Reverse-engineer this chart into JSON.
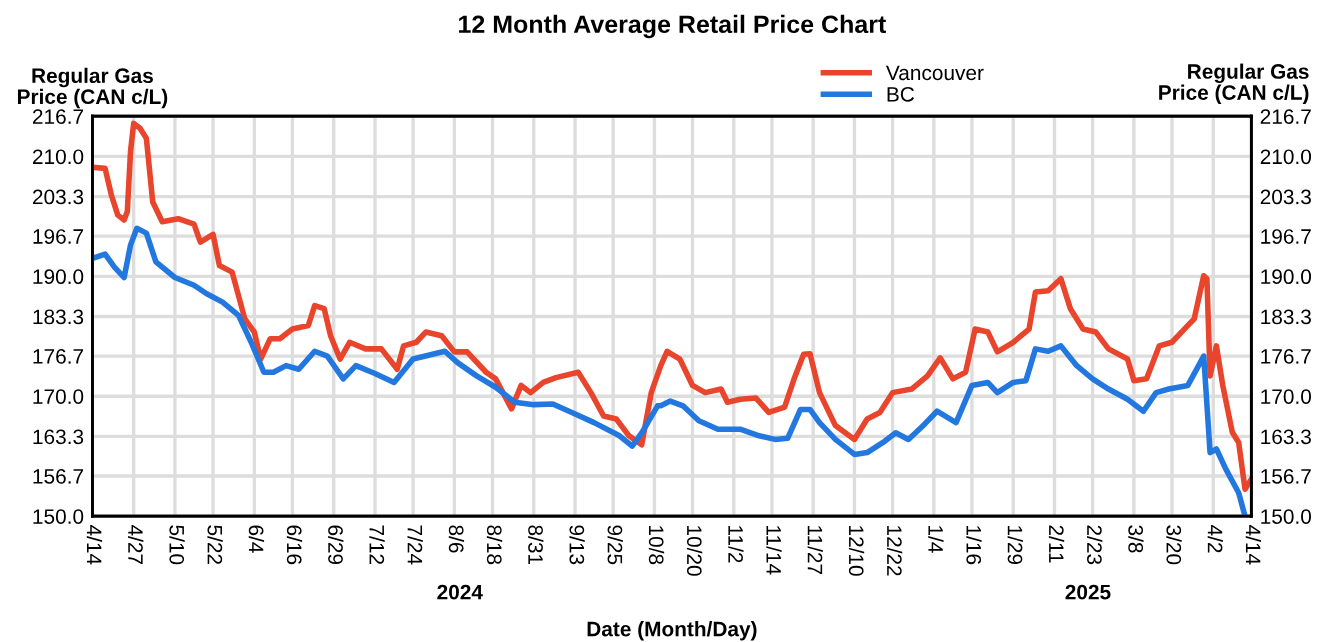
{
  "chart_data": {
    "type": "line",
    "title": "12 Month Average Retail Price Chart",
    "xlabel": "Date (Month/Day)",
    "ylabel": "Regular Gas\nPrice (CAN c/L)",
    "y2label": "Regular Gas\nPrice (CAN c/L)",
    "annotations": [
      "2024",
      "2025"
    ],
    "series": [
      {
        "name": "Vancouver",
        "color": "#e8452c",
        "x": [
          "2024-04-14",
          "2024-04-18",
          "2024-04-20",
          "2024-04-22",
          "2024-04-24",
          "2024-04-25",
          "2024-04-26",
          "2024-04-27",
          "2024-04-29",
          "2024-05-01",
          "2024-05-03",
          "2024-05-06",
          "2024-05-11",
          "2024-05-16",
          "2024-05-18",
          "2024-05-22",
          "2024-05-24",
          "2024-05-28",
          "2024-06-01",
          "2024-06-04",
          "2024-06-06",
          "2024-06-09",
          "2024-06-12",
          "2024-06-16",
          "2024-06-21",
          "2024-06-23",
          "2024-06-26",
          "2024-06-28",
          "2024-07-01",
          "2024-07-04",
          "2024-07-09",
          "2024-07-14",
          "2024-07-19",
          "2024-07-21",
          "2024-07-25",
          "2024-07-28",
          "2024-08-02",
          "2024-08-06",
          "2024-08-10",
          "2024-08-16",
          "2024-08-19",
          "2024-08-24",
          "2024-08-27",
          "2024-08-30",
          "2024-09-03",
          "2024-09-07",
          "2024-09-14",
          "2024-09-18",
          "2024-09-22",
          "2024-09-26",
          "2024-09-30",
          "2024-10-04",
          "2024-10-07",
          "2024-10-10",
          "2024-10-12",
          "2024-10-16",
          "2024-10-20",
          "2024-10-24",
          "2024-10-29",
          "2024-10-31",
          "2024-11-04",
          "2024-11-09",
          "2024-11-13",
          "2024-11-18",
          "2024-11-21",
          "2024-11-24",
          "2024-11-26",
          "2024-11-29",
          "2024-12-04",
          "2024-12-10",
          "2024-12-14",
          "2024-12-18",
          "2024-12-22",
          "2024-12-28",
          "2025-01-02",
          "2025-01-06",
          "2025-01-10",
          "2025-01-14",
          "2025-01-17",
          "2025-01-21",
          "2025-01-24",
          "2025-01-29",
          "2025-02-03",
          "2025-02-05",
          "2025-02-09",
          "2025-02-13",
          "2025-02-16",
          "2025-02-20",
          "2025-02-24",
          "2025-02-28",
          "2025-03-06",
          "2025-03-08",
          "2025-03-12",
          "2025-03-16",
          "2025-03-20",
          "2025-03-23",
          "2025-03-27",
          "2025-03-30",
          "2025-03-31",
          "2025-04-01",
          "2025-04-03",
          "2025-04-05",
          "2025-04-08",
          "2025-04-10",
          "2025-04-12",
          "2025-04-14"
        ],
        "values": [
          208.2,
          208.0,
          203.5,
          200.2,
          199.4,
          200.8,
          210.8,
          215.5,
          214.7,
          213.0,
          202.4,
          199.1,
          199.6,
          198.7,
          195.7,
          197.0,
          191.8,
          190.7,
          182.9,
          180.7,
          176.2,
          179.6,
          179.6,
          181.2,
          181.8,
          185.1,
          184.6,
          180.1,
          176.2,
          179.0,
          177.9,
          177.9,
          174.5,
          178.4,
          179.0,
          180.7,
          180.1,
          177.4,
          177.4,
          174.0,
          172.9,
          167.9,
          171.8,
          170.6,
          172.3,
          173.1,
          174.0,
          170.6,
          166.7,
          166.2,
          163.4,
          161.9,
          170.6,
          175.1,
          177.5,
          176.2,
          171.8,
          170.6,
          171.2,
          169.0,
          169.5,
          169.7,
          167.3,
          168.2,
          172.9,
          177.0,
          177.1,
          170.6,
          165.1,
          162.8,
          166.2,
          167.3,
          170.6,
          171.2,
          173.4,
          176.4,
          172.9,
          174.0,
          181.2,
          180.7,
          177.4,
          179.0,
          181.2,
          187.4,
          187.6,
          189.6,
          184.6,
          181.2,
          180.7,
          177.9,
          176.2,
          172.6,
          172.9,
          178.4,
          179.0,
          180.7,
          182.9,
          190.1,
          189.6,
          173.4,
          178.4,
          171.8,
          164.0,
          162.3,
          154.5,
          156.2
        ]
      },
      {
        "name": "BC",
        "color": "#2378e0",
        "x": [
          "2024-04-14",
          "2024-04-18",
          "2024-04-21",
          "2024-04-24",
          "2024-04-26",
          "2024-04-28",
          "2024-05-01",
          "2024-05-04",
          "2024-05-10",
          "2024-05-16",
          "2024-05-20",
          "2024-05-25",
          "2024-05-30",
          "2024-06-03",
          "2024-06-07",
          "2024-06-10",
          "2024-06-14",
          "2024-06-18",
          "2024-06-23",
          "2024-06-27",
          "2024-07-02",
          "2024-07-06",
          "2024-07-12",
          "2024-07-18",
          "2024-07-24",
          "2024-08-03",
          "2024-08-07",
          "2024-08-13",
          "2024-08-19",
          "2024-08-25",
          "2024-08-31",
          "2024-09-06",
          "2024-09-12",
          "2024-09-19",
          "2024-09-27",
          "2024-10-01",
          "2024-10-04",
          "2024-10-09",
          "2024-10-10",
          "2024-10-13",
          "2024-10-17",
          "2024-10-22",
          "2024-10-28",
          "2024-11-04",
          "2024-11-10",
          "2024-11-15",
          "2024-11-19",
          "2024-11-23",
          "2024-11-26",
          "2024-11-29",
          "2024-12-04",
          "2024-12-10",
          "2024-12-14",
          "2024-12-19",
          "2024-12-23",
          "2024-12-27",
          "2025-01-01",
          "2025-01-05",
          "2025-01-11",
          "2025-01-16",
          "2025-01-21",
          "2025-01-24",
          "2025-01-29",
          "2025-02-02",
          "2025-02-05",
          "2025-02-09",
          "2025-02-13",
          "2025-02-18",
          "2025-02-23",
          "2025-02-28",
          "2025-03-06",
          "2025-03-11",
          "2025-03-15",
          "2025-03-19",
          "2025-03-25",
          "2025-03-30",
          "2025-04-01",
          "2025-04-03",
          "2025-04-06",
          "2025-04-10",
          "2025-04-12"
        ],
        "values": [
          193.0,
          193.7,
          191.5,
          189.8,
          195.2,
          198.0,
          197.2,
          192.4,
          189.8,
          188.5,
          187.1,
          185.7,
          183.5,
          179.0,
          174.0,
          174.0,
          175.1,
          174.5,
          177.5,
          176.7,
          172.9,
          175.1,
          173.8,
          172.3,
          176.2,
          177.5,
          175.6,
          173.4,
          171.5,
          169.0,
          168.6,
          168.7,
          167.3,
          165.6,
          163.4,
          161.7,
          163.9,
          168.4,
          168.4,
          169.2,
          168.4,
          165.9,
          164.5,
          164.5,
          163.4,
          162.8,
          163.0,
          167.8,
          167.8,
          165.6,
          162.8,
          160.3,
          160.6,
          162.3,
          163.9,
          162.8,
          165.3,
          167.5,
          165.6,
          171.8,
          172.3,
          170.6,
          172.3,
          172.6,
          177.9,
          177.5,
          178.4,
          175.1,
          172.9,
          171.2,
          169.5,
          167.5,
          170.6,
          171.2,
          171.8,
          176.7,
          160.6,
          161.2,
          157.8,
          153.9,
          150.0
        ]
      }
    ],
    "xlim": [
      "2024-04-14",
      "2025-04-14"
    ],
    "xticks": [
      {
        "value": "2024-04-14",
        "label": "4/14"
      },
      {
        "value": "2024-04-27",
        "label": "4/27"
      },
      {
        "value": "2024-05-10",
        "label": "5/10"
      },
      {
        "value": "2024-05-22",
        "label": "5/22"
      },
      {
        "value": "2024-06-04",
        "label": "6/4"
      },
      {
        "value": "2024-06-16",
        "label": "6/16"
      },
      {
        "value": "2024-06-29",
        "label": "6/29"
      },
      {
        "value": "2024-07-12",
        "label": "7/12"
      },
      {
        "value": "2024-07-24",
        "label": "7/24"
      },
      {
        "value": "2024-08-06",
        "label": "8/6"
      },
      {
        "value": "2024-08-18",
        "label": "8/18"
      },
      {
        "value": "2024-08-31",
        "label": "8/31"
      },
      {
        "value": "2024-09-13",
        "label": "9/13"
      },
      {
        "value": "2024-09-25",
        "label": "9/25"
      },
      {
        "value": "2024-10-08",
        "label": "10/8"
      },
      {
        "value": "2024-10-20",
        "label": "10/20"
      },
      {
        "value": "2024-11-02",
        "label": "11/2"
      },
      {
        "value": "2024-11-14",
        "label": "11/14"
      },
      {
        "value": "2024-11-27",
        "label": "11/27"
      },
      {
        "value": "2024-12-10",
        "label": "12/10"
      },
      {
        "value": "2024-12-22",
        "label": "12/22"
      },
      {
        "value": "2025-01-04",
        "label": "1/4"
      },
      {
        "value": "2025-01-16",
        "label": "1/16"
      },
      {
        "value": "2025-01-29",
        "label": "1/29"
      },
      {
        "value": "2025-02-11",
        "label": "2/11"
      },
      {
        "value": "2025-02-23",
        "label": "2/23"
      },
      {
        "value": "2025-03-08",
        "label": "3/8"
      },
      {
        "value": "2025-03-20",
        "label": "3/20"
      },
      {
        "value": "2025-04-02",
        "label": "4/2"
      },
      {
        "value": "2025-04-14",
        "label": "4/14"
      }
    ],
    "ylim": [
      150.0,
      216.7
    ],
    "yticks": [
      {
        "value": 150.0,
        "label": "150.0"
      },
      {
        "value": 156.7,
        "label": "156.7"
      },
      {
        "value": 163.3,
        "label": "163.3"
      },
      {
        "value": 170.0,
        "label": "170.0"
      },
      {
        "value": 176.7,
        "label": "176.7"
      },
      {
        "value": 183.3,
        "label": "183.3"
      },
      {
        "value": 190.0,
        "label": "190.0"
      },
      {
        "value": 196.7,
        "label": "196.7"
      },
      {
        "value": 203.3,
        "label": "203.3"
      },
      {
        "value": 210.0,
        "label": "210.0"
      },
      {
        "value": 216.7,
        "label": "216.7"
      }
    ],
    "y2lim": [
      150.0,
      216.7
    ],
    "y2ticks": [
      {
        "value": 150.0,
        "label": "150.0"
      },
      {
        "value": 156.7,
        "label": "156.7"
      },
      {
        "value": 163.3,
        "label": "163.3"
      },
      {
        "value": 170.0,
        "label": "170.0"
      },
      {
        "value": 176.7,
        "label": "176.7"
      },
      {
        "value": 183.3,
        "label": "183.3"
      },
      {
        "value": 190.0,
        "label": "190.0"
      },
      {
        "value": 196.7,
        "label": "196.7"
      },
      {
        "value": 203.3,
        "label": "203.3"
      },
      {
        "value": 210.0,
        "label": "210.0"
      },
      {
        "value": 216.7,
        "label": "216.7"
      }
    ],
    "grid": true,
    "legend": "top",
    "marker": "none",
    "line_style": "solid"
  }
}
